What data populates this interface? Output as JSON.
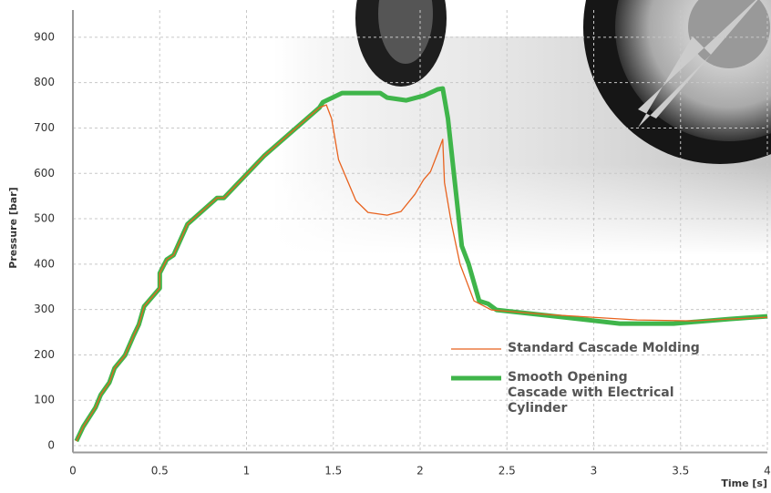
{
  "chart_data": {
    "type": "line",
    "x_label": "Time [s]",
    "y_label": "Pressure [bar]",
    "xlim": [
      0,
      4
    ],
    "xticks": [
      0,
      0.5,
      1,
      1.5,
      2,
      2.5,
      3,
      3.5,
      4
    ],
    "ylim": [
      -15,
      960
    ],
    "yticks": [
      0,
      100,
      200,
      300,
      400,
      500,
      600,
      700,
      800,
      900
    ],
    "grid": true,
    "series": [
      {
        "name": "Standard Cascade Molding",
        "color": "#e8621e",
        "width": 1.3,
        "x": [
          0.02,
          0.06,
          0.13,
          0.16,
          0.21,
          0.24,
          0.3,
          0.35,
          0.38,
          0.41,
          0.5,
          0.5,
          0.54,
          0.58,
          0.66,
          0.83,
          0.87,
          1.1,
          1.42,
          1.46,
          1.49,
          1.53,
          1.63,
          1.7,
          1.81,
          1.89,
          1.97,
          2.02,
          2.06,
          2.1,
          2.13,
          2.14,
          2.18,
          2.23,
          2.31,
          2.41,
          2.73,
          3.25,
          3.57,
          4.0
        ],
        "values": [
          10,
          42,
          84,
          112,
          139,
          171,
          199,
          243,
          267,
          307,
          347,
          380,
          410,
          420,
          488,
          546,
          546,
          638,
          745,
          751,
          721,
          630,
          540,
          514,
          508,
          516,
          554,
          586,
          604,
          644,
          675,
          580,
          490,
          400,
          319,
          299,
          289,
          277,
          275,
          283
        ]
      },
      {
        "name": "Smooth Opening Cascade with Electrical Cylinder",
        "color": "#3fb54a",
        "width": 5,
        "x": [
          0.02,
          0.06,
          0.13,
          0.16,
          0.21,
          0.24,
          0.3,
          0.35,
          0.38,
          0.41,
          0.5,
          0.5,
          0.54,
          0.58,
          0.66,
          0.83,
          0.87,
          1.1,
          1.42,
          1.44,
          1.55,
          1.77,
          1.81,
          1.92,
          2.02,
          2.1,
          2.13,
          2.16,
          2.2,
          2.24,
          2.28,
          2.34,
          2.39,
          2.44,
          2.73,
          3.15,
          3.46,
          3.78,
          4.0
        ],
        "values": [
          10,
          42,
          84,
          112,
          139,
          171,
          199,
          243,
          267,
          307,
          347,
          380,
          410,
          420,
          488,
          546,
          546,
          638,
          745,
          757,
          777,
          777,
          767,
          761,
          771,
          785,
          787,
          721,
          580,
          440,
          400,
          319,
          313,
          299,
          287,
          269,
          269,
          279,
          285
        ]
      }
    ]
  }
}
